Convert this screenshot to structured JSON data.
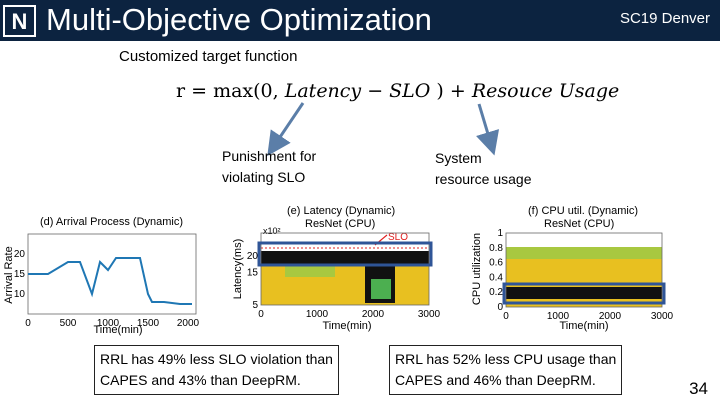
{
  "header": {
    "title": "Multi-Objective Optimization",
    "venue": "SC19 Denver",
    "logo_icon": "university-logo-icon",
    "logo_letter": "N"
  },
  "slide": {
    "subtitle": "Customized target function",
    "formula": {
      "lhs": "r = max(0, ",
      "term1": "Latency − SLO",
      "mid": " ) + ",
      "term2": "Resouce Usage"
    },
    "annotations": {
      "punishment_line1": "Punishment for",
      "punishment_line2": "violating SLO",
      "system_line1": "System",
      "system_line2": "resource usage"
    },
    "callouts": {
      "left_line1": "RRL has 49% less SLO violation than",
      "left_line2": "CAPES and 43% than DeepRM.",
      "right_line1": "RRL has 52% less CPU usage than",
      "right_line2": "CAPES and 46% than DeepRM."
    },
    "page_number": "34"
  },
  "colors": {
    "header_bg": "#0c2340",
    "arrow": "#5b7ea8",
    "highlight_box": "#2f5597",
    "series_blue": "#1f77b4",
    "heat_yellow": "#e8c020",
    "heat_green": "#4caf50",
    "heat_black": "#111111",
    "slo_red": "#e02020"
  },
  "chart_data": [
    {
      "type": "line",
      "title": "(d) Arrival Process (Dynamic)",
      "xlabel": "Time(min)",
      "ylabel": "Arrival Rate",
      "xticks": [
        "0",
        "500",
        "1000",
        "1500",
        "2000"
      ],
      "yticks": [
        "10",
        "15",
        "20"
      ],
      "xlim": [
        0,
        2100
      ],
      "ylim": [
        5,
        25
      ],
      "x": [
        0,
        250,
        500,
        650,
        800,
        900,
        1000,
        1100,
        1200,
        1300,
        1400,
        1500,
        1550,
        1700,
        1900,
        2050
      ],
      "values": [
        15,
        15,
        18,
        18,
        10,
        18,
        16,
        19,
        19,
        19,
        19,
        10,
        8,
        8,
        7.5,
        7.5
      ]
    },
    {
      "type": "heatmap",
      "title": "(e) Latency (Dynamic)",
      "subtitle": "ResNet (CPU)",
      "xlabel": "Time(min)",
      "ylabel": "Latency(ms)",
      "axis_multiplier": "x10²",
      "xticks": [
        "0",
        "1000",
        "2000",
        "3000"
      ],
      "yticks": [
        "5",
        "15",
        "20"
      ],
      "xlim": [
        0,
        3000
      ],
      "ylim": [
        5,
        27
      ],
      "annotation": "SLO",
      "slo_value": 24
    },
    {
      "type": "heatmap",
      "title": "(f) CPU util. (Dynamic)",
      "subtitle": "ResNet (CPU)",
      "xlabel": "Time(min)",
      "ylabel": "CPU utilization",
      "xticks": [
        "0",
        "1000",
        "2000",
        "3000"
      ],
      "yticks": [
        "0",
        "0.2",
        "0.4",
        "0.6",
        "0.8",
        "1"
      ],
      "xlim": [
        0,
        3000
      ],
      "ylim": [
        0,
        1
      ]
    }
  ]
}
